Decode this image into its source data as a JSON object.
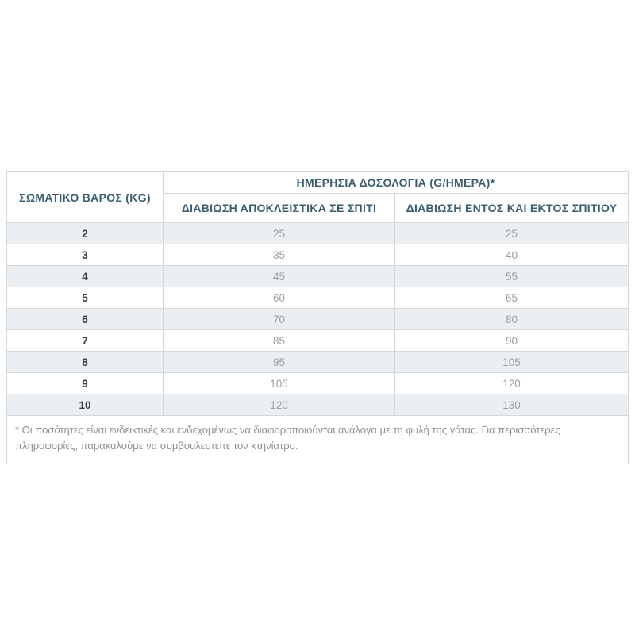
{
  "table": {
    "weight_header": "ΣΩΜΑΤΙΚΟ ΒΑΡΟΣ (KG)",
    "span_header": "ΗΜΕΡΗΣΙΑ ΔΟΣΟΛΟΓΙΑ (G/ΗΜΕΡΑ)*",
    "sub_headers": {
      "indoor": "ΔΙΑΒΙΩΣΗ ΑΠΟΚΛΕΙΣΤΙΚΑ ΣΕ ΣΠΙΤΙ",
      "outdoor": "ΔΙΑΒΙΩΣΗ ΕΝΤΟΣ ΚΑΙ ΕΚΤΟΣ ΣΠΙΤΙΟΥ"
    },
    "rows": [
      {
        "weight": "2",
        "indoor": "25",
        "outdoor": "25"
      },
      {
        "weight": "3",
        "indoor": "35",
        "outdoor": "40"
      },
      {
        "weight": "4",
        "indoor": "45",
        "outdoor": "55"
      },
      {
        "weight": "5",
        "indoor": "60",
        "outdoor": "65"
      },
      {
        "weight": "6",
        "indoor": "70",
        "outdoor": "80"
      },
      {
        "weight": "7",
        "indoor": "85",
        "outdoor": "90"
      },
      {
        "weight": "8",
        "indoor": "95",
        "outdoor": "105"
      },
      {
        "weight": "9",
        "indoor": "105",
        "outdoor": "120"
      },
      {
        "weight": "10",
        "indoor": "120",
        "outdoor": "130"
      }
    ],
    "footnote": "* Οι ποσότητες είναι ενδεικτικές και ενδεχομένως να διαφοροποιούνται ανάλογα με τη φυλή της γάτας. Για περισσότερες πληροφορίες, παρακαλούμε να συμβουλευτείτε τον κτηνίατρο."
  },
  "colors": {
    "header_text": "#3a5d72",
    "stripe_background": "#eceff1",
    "value_text": "#9b9ea0",
    "weight_text": "#3d3d3f",
    "border": "#d5d8da",
    "footnote_text": "#8d9092"
  }
}
